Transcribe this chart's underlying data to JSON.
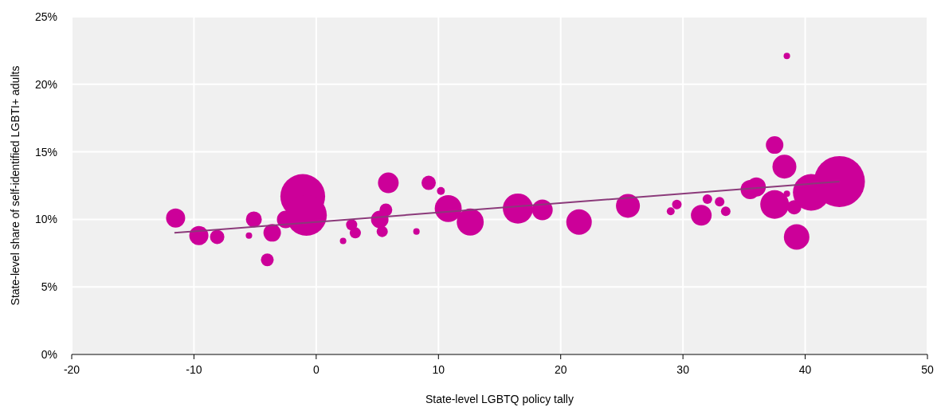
{
  "chart_data": {
    "type": "bubble",
    "xlabel": "State-level LGBTQ policy tally",
    "ylabel": "State-level share of self-identified LGBTI+ adults",
    "xlim": [
      -20,
      50
    ],
    "xticks": [
      -20,
      -10,
      0,
      10,
      20,
      30,
      40,
      50
    ],
    "ylim": [
      0,
      25
    ],
    "yticks": [
      {
        "value": 0,
        "label": "0%"
      },
      {
        "value": 5,
        "label": "5%"
      },
      {
        "value": 10,
        "label": "10%"
      },
      {
        "value": 15,
        "label": "15%"
      },
      {
        "value": 20,
        "label": "20%"
      },
      {
        "value": 25,
        "label": "25%"
      }
    ],
    "grid": true,
    "series": [
      {
        "marker": "circle",
        "color": "#cc0099",
        "x": [
          -11.5,
          -9.6,
          -8.1,
          -5.5,
          -5.1,
          -4.0,
          -3.6,
          -2.5,
          -1.1,
          -0.8,
          2.2,
          2.9,
          3.2,
          5.2,
          5.4,
          5.7,
          5.9,
          8.2,
          9.2,
          10.2,
          10.8,
          12.6,
          16.5,
          18.5,
          21.5,
          25.5,
          29.0,
          29.5,
          31.5,
          32.0,
          33.0,
          33.5,
          35.5,
          36.0,
          37.5,
          37.5,
          38.3,
          38.5,
          38.5,
          39.1,
          39.3,
          40.5,
          42.8
        ],
        "values": [
          10.1,
          8.8,
          8.7,
          8.8,
          10.0,
          7.0,
          9.0,
          10.0,
          11.7,
          10.3,
          8.4,
          9.6,
          9.0,
          10.0,
          9.1,
          10.7,
          12.7,
          9.1,
          12.7,
          12.1,
          10.8,
          9.8,
          10.8,
          10.7,
          9.8,
          11.0,
          10.6,
          11.1,
          10.3,
          11.5,
          11.3,
          10.6,
          12.2,
          12.4,
          15.5,
          11.1,
          13.9,
          22.1,
          11.9,
          10.9,
          8.7,
          12.0,
          12.8
        ],
        "sizes": [
          0.141,
          0.141,
          0.079,
          0.016,
          0.098,
          0.0625,
          0.118,
          0.118,
          0.77,
          0.64,
          0.016,
          0.048,
          0.048,
          0.118,
          0.048,
          0.0625,
          0.165,
          0.016,
          0.079,
          0.024,
          0.28,
          0.28,
          0.35,
          0.165,
          0.25,
          0.22,
          0.024,
          0.035,
          0.165,
          0.035,
          0.035,
          0.035,
          0.141,
          0.141,
          0.118,
          0.316,
          0.22,
          0.016,
          0.016,
          0.079,
          0.25,
          0.52,
          1
        ]
      },
      {
        "type": "line",
        "color": "#8b3a7a",
        "x": [
          -11.6,
          42.8
        ],
        "values": [
          9.0,
          12.8
        ]
      }
    ]
  }
}
